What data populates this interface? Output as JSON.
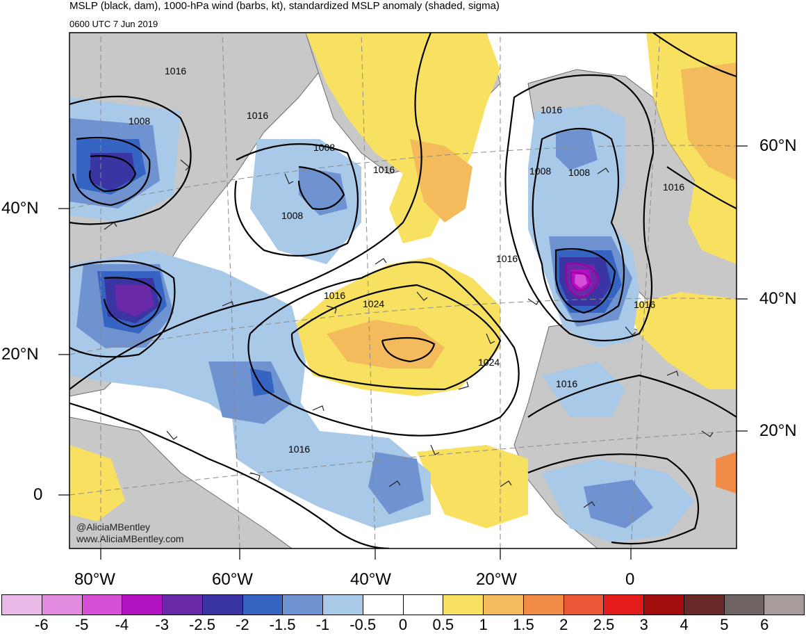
{
  "header": {
    "title": "MSLP (black, dam), 1000-hPa wind (barbs, kt), standardized MSLP anomaly (shaded, sigma)",
    "subtitle": "0600 UTC 7 Jun 2019"
  },
  "credit": {
    "handle": "@AliciaMBentley",
    "website": "www.AliciaMBentley.com"
  },
  "axes": {
    "left_labels": [
      "40°N",
      "20°N",
      "0"
    ],
    "right_labels": [
      "60°N",
      "40°N",
      "20°N"
    ],
    "bottom_labels": [
      "80°W",
      "60°W",
      "40°W",
      "20°W",
      "0"
    ]
  },
  "contour_labels": [
    "1016",
    "1008",
    "1016",
    "1008",
    "1016",
    "1008",
    "1016",
    "1016",
    "1008",
    "1008",
    "1016",
    "1024",
    "1016",
    "1016",
    "1024",
    "1016",
    "1016"
  ],
  "colorbar": {
    "labels": [
      "-6",
      "-5",
      "-4",
      "-3",
      "-2.5",
      "-2",
      "-1.5",
      "-1",
      "-0.5",
      "0",
      "0.5",
      "1",
      "1.5",
      "2",
      "2.5",
      "3",
      "4",
      "5",
      "6"
    ],
    "colors": [
      "#e9b8e6",
      "#e38be0",
      "#d64fd6",
      "#b312c3",
      "#6a2aa8",
      "#3b35a3",
      "#3664c2",
      "#6f93d0",
      "#a8c9e8",
      "#ffffff",
      "#ffffff",
      "#f8e160",
      "#f3bb5c",
      "#f08c48",
      "#ea5636",
      "#e41b1b",
      "#a30c0c",
      "#6b2a2a",
      "#6e6362",
      "#a79c9b"
    ]
  },
  "map_colors": {
    "land_gray": "#c8c8c8",
    "border": "#5a5a5a",
    "contour": "#000000"
  }
}
